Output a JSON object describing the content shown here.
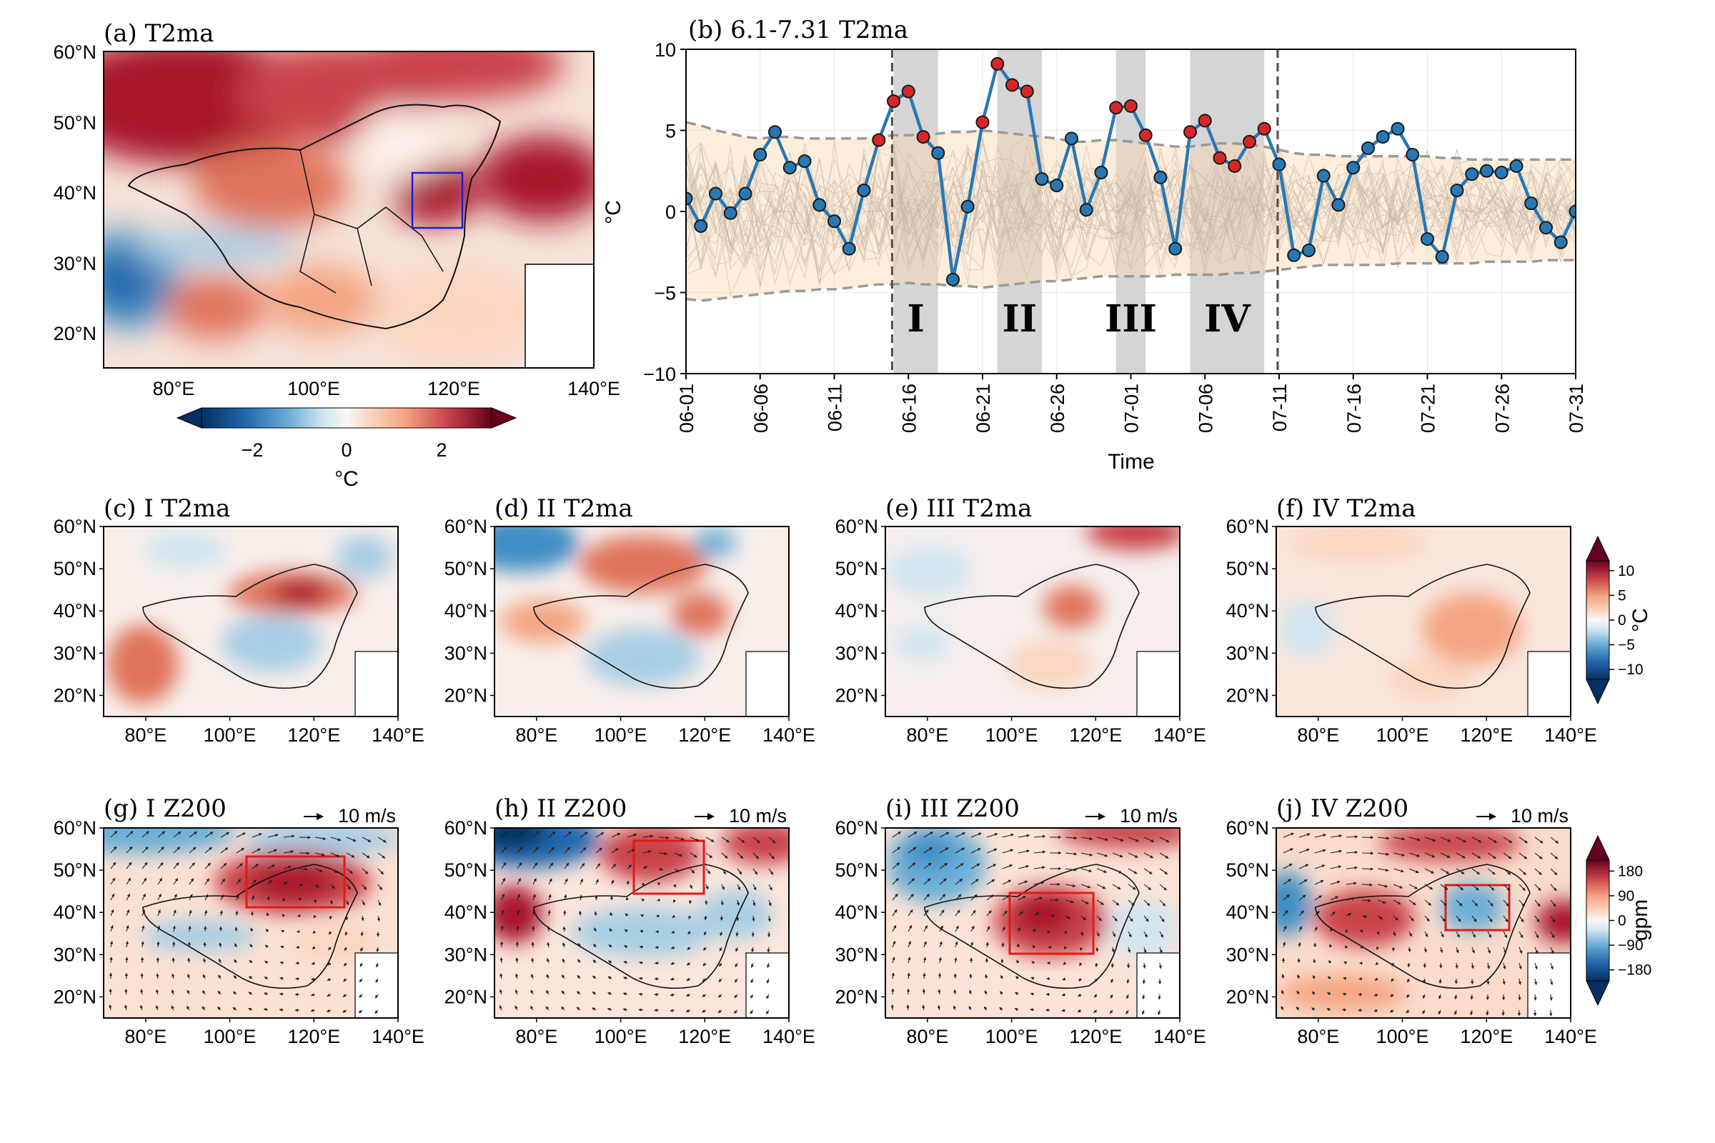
{
  "figure": {
    "colors": {
      "warm": [
        "#fdf0ea",
        "#fbd5c0",
        "#f4a582",
        "#e0735c",
        "#c9424a",
        "#a81529",
        "#67001f"
      ],
      "cool": [
        "#eef4f9",
        "#d1e5f0",
        "#a8cde4",
        "#6baed6",
        "#3f8ec4",
        "#2166ac",
        "#053061"
      ],
      "series": "#2878b5",
      "hot_marker": "#d62728",
      "envelope": "#fcd7ae",
      "ensemble": "#9a9a9a",
      "event_shade": "#d0d0d0"
    },
    "panel_a": {
      "title": "(a) T2ma",
      "lat_ticks": [
        "60°N",
        "50°N",
        "40°N",
        "30°N",
        "20°N"
      ],
      "lon_ticks": [
        "80°E",
        "100°E",
        "120°E",
        "140°E"
      ],
      "colorbar": {
        "ticks": [
          "−2",
          "0",
          "2"
        ],
        "label": "°C",
        "range": [
          -3,
          3
        ]
      }
    },
    "panel_b": {
      "title": "(b) 6.1-7.31 T2ma",
      "ylabel": "°C",
      "xlabel": "Time",
      "y_ticks": [
        "10",
        "5",
        "0",
        "−5",
        "−10"
      ],
      "x_ticks": [
        "06-01",
        "06-06",
        "06-11",
        "06-16",
        "06-21",
        "06-26",
        "07-01",
        "07-06",
        "07-11",
        "07-16",
        "07-21",
        "07-26",
        "07-31"
      ],
      "events": [
        {
          "label": "I",
          "start_day": 14,
          "end_day": 17
        },
        {
          "label": "II",
          "start_day": 21,
          "end_day": 24
        },
        {
          "label": "III",
          "start_day": 29,
          "end_day": 31
        },
        {
          "label": "IV",
          "start_day": 34,
          "end_day": 39
        }
      ],
      "dashed_lines_day": [
        13.9,
        39.9
      ]
    },
    "chart_data": [
      {
        "type": "line",
        "title": "(b) 6.1-7.31 T2ma",
        "xlabel": "Time",
        "ylabel": "°C",
        "ylim": [
          -10,
          10
        ],
        "xlim": [
          "06-01",
          "07-31"
        ],
        "x_tick_labels": [
          "06-01",
          "06-06",
          "06-11",
          "06-16",
          "06-21",
          "06-26",
          "07-01",
          "07-06",
          "07-11",
          "07-16",
          "07-21",
          "07-26",
          "07-31"
        ],
        "grid": true,
        "series": [
          {
            "values": [
              0.8,
              -0.9,
              1.1,
              -0.1,
              1.1,
              3.5,
              4.9,
              2.7,
              3.1,
              0.4,
              -0.6,
              -2.3,
              1.3,
              4.4,
              6.8,
              7.4,
              4.6,
              3.6,
              -4.2,
              0.3,
              5.5,
              9.1,
              7.8,
              7.4,
              2.0,
              1.6,
              4.5,
              0.1,
              2.4,
              6.4,
              6.5,
              4.7,
              2.1,
              -2.3,
              4.9,
              5.6,
              3.3,
              2.8,
              4.3,
              5.1,
              2.9,
              -2.7,
              -2.4,
              2.2,
              0.4,
              2.7,
              3.9,
              4.6,
              5.1,
              3.5,
              -1.7,
              -2.8,
              1.3,
              2.3,
              2.5,
              2.4,
              2.8,
              0.5,
              -1.0,
              -1.9,
              0.0
            ],
            "hot_days": [
              13,
              14,
              15,
              16,
              20,
              21,
              22,
              23,
              29,
              30,
              31,
              34,
              35,
              36,
              37,
              38,
              39
            ]
          }
        ],
        "envelope_upper": [
          5.5,
          5.3,
          5.0,
          4.8,
          4.6,
          4.5,
          4.6,
          4.6,
          4.5,
          4.5,
          4.5,
          4.5,
          4.5,
          4.6,
          4.7,
          4.7,
          4.7,
          4.8,
          4.9,
          4.9,
          5.0,
          4.9,
          4.8,
          4.7,
          4.6,
          4.5,
          4.3,
          4.3,
          4.4,
          4.4,
          4.3,
          4.2,
          4.1,
          4.0,
          4.0,
          4.1,
          4.2,
          4.2,
          4.1,
          4.0,
          3.8,
          3.6,
          3.5,
          3.5,
          3.4,
          3.4,
          3.4,
          3.4,
          3.4,
          3.4,
          3.4,
          3.3,
          3.3,
          3.2,
          3.2,
          3.2,
          3.2,
          3.2,
          3.2,
          3.2,
          3.2
        ],
        "envelope_lower": [
          -5.4,
          -5.5,
          -5.4,
          -5.3,
          -5.2,
          -5.1,
          -5.0,
          -4.9,
          -4.9,
          -4.8,
          -4.8,
          -4.7,
          -4.6,
          -4.5,
          -4.5,
          -4.4,
          -4.5,
          -4.5,
          -4.6,
          -4.6,
          -4.7,
          -4.6,
          -4.5,
          -4.4,
          -4.3,
          -4.3,
          -4.2,
          -4.1,
          -4.0,
          -4.0,
          -4.0,
          -4.0,
          -4.0,
          -3.9,
          -3.9,
          -3.9,
          -3.9,
          -3.8,
          -3.8,
          -3.7,
          -3.6,
          -3.5,
          -3.4,
          -3.3,
          -3.3,
          -3.3,
          -3.3,
          -3.3,
          -3.2,
          -3.2,
          -3.2,
          -3.2,
          -3.2,
          -3.2,
          -3.1,
          -3.1,
          -3.1,
          -3.1,
          -3.0,
          -3.0,
          -3.0
        ]
      }
    ],
    "row_c": {
      "titles": [
        "(c) I  T2ma",
        "(d) II  T2ma",
        "(e) III  T2ma",
        "(f) IV  T2ma"
      ],
      "colorbar": {
        "ticks": [
          "10",
          "5",
          "0",
          "−5",
          "−10"
        ],
        "label": "°C",
        "range": [
          -12,
          12
        ]
      }
    },
    "row_g": {
      "titles": [
        "(g) I  Z200",
        "(h) II  Z200",
        "(i) III  Z200",
        "(j) IV  Z200"
      ],
      "vector_key": "10 m/s",
      "colorbar": {
        "ticks": [
          "180",
          "90",
          "0",
          "−90",
          "−180"
        ],
        "label": "gpm",
        "range": [
          -220,
          220
        ]
      }
    },
    "map_lat_ticks": [
      "60°N",
      "50°N",
      "40°N",
      "30°N",
      "20°N"
    ],
    "map_lon_ticks": [
      "80°E",
      "100°E",
      "120°E",
      "140°E"
    ]
  }
}
